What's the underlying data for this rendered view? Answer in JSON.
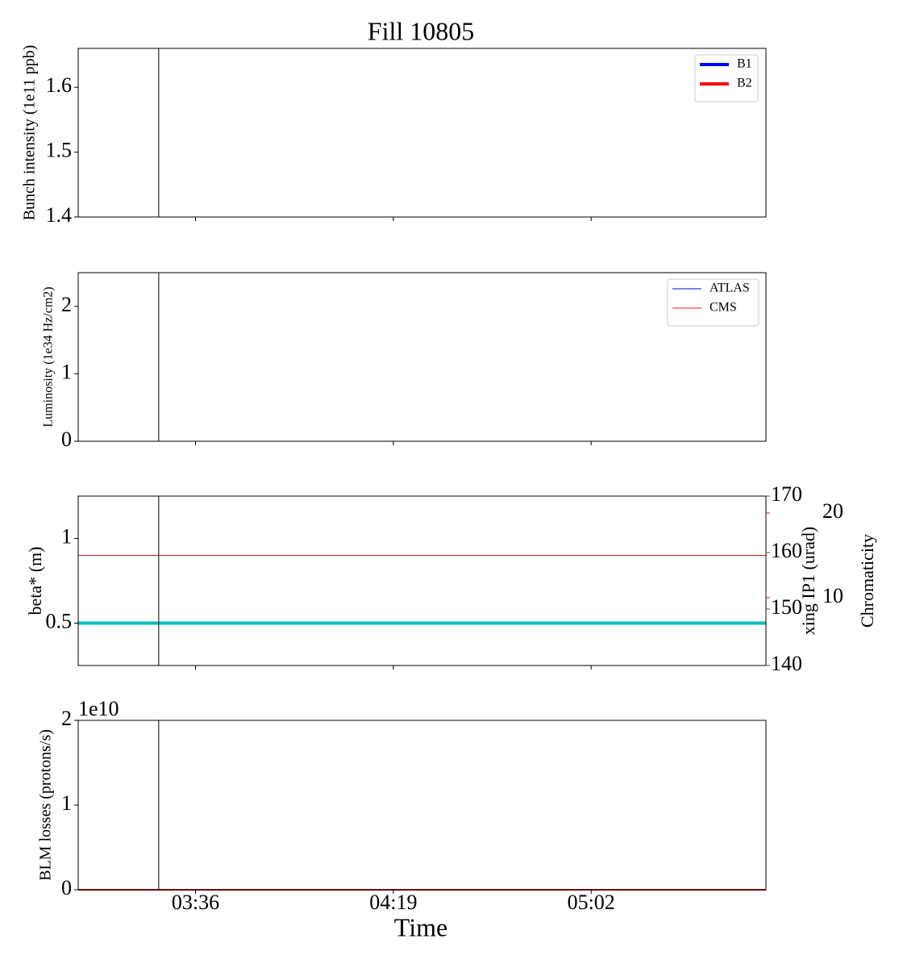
{
  "title": "Fill 10805",
  "chart_data": [
    {
      "type": "line",
      "ylabel": "Bunch intensity (1e11 ppb)",
      "x": [],
      "series": [
        {
          "name": "B1",
          "color": "#0000ff",
          "values": []
        },
        {
          "name": "B2",
          "color": "#ff0000",
          "values": []
        }
      ],
      "xlim": [
        190.5,
        340
      ],
      "xticks": [
        {
          "value": 216,
          "label": "03:36"
        },
        {
          "value": 259,
          "label": "04:19"
        },
        {
          "value": 302,
          "label": "05:02"
        }
      ],
      "ylim": [
        1.4,
        1.66
      ],
      "yticks": [
        1.4,
        1.5,
        1.6
      ],
      "vline": 208,
      "legend": "upper right"
    },
    {
      "type": "line",
      "ylabel": "Luminosity (1e34 Hz/cm2)",
      "x": [
        190.5,
        340
      ],
      "series": [
        {
          "name": "ATLAS",
          "color": "#0000cc",
          "values": [
            0,
            0
          ]
        },
        {
          "name": "CMS",
          "color": "#cc2222",
          "values": [
            0,
            0
          ]
        }
      ],
      "xlim": [
        190.5,
        340
      ],
      "xticks": [
        {
          "value": 216,
          "label": "03:36"
        },
        {
          "value": 259,
          "label": "04:19"
        },
        {
          "value": 302,
          "label": "05:02"
        }
      ],
      "ylim": [
        0,
        2.5
      ],
      "yticks": [
        0,
        1,
        2
      ],
      "vline": 208,
      "legend": "upper right"
    },
    {
      "type": "line",
      "ylabel": "beta* (m)",
      "ylabel_color": "#00bfbf",
      "y2label": "xing IP1 (urad)",
      "y2color": "#008000",
      "y3label": "Chromaticity",
      "y3color": "#b22222",
      "x": [
        190.5,
        340
      ],
      "series": [
        {
          "color": "#00bfbf",
          "values": [
            0.5,
            0.5
          ]
        },
        {
          "color": "#b22222",
          "values": [
            15,
            15
          ],
          "axis": "y3"
        }
      ],
      "xlim": [
        190.5,
        340
      ],
      "xticks": [
        {
          "value": 216,
          "label": "03:36"
        },
        {
          "value": 259,
          "label": "04:19"
        },
        {
          "value": 302,
          "label": "05:02"
        }
      ],
      "ylim": [
        0.25,
        1.25
      ],
      "yticks": [
        0.5,
        1.0
      ],
      "y2lim": [
        140,
        170
      ],
      "y2ticks": [
        140,
        150,
        160,
        170
      ],
      "y3lim": [
        2,
        22
      ],
      "y3ticks": [
        10,
        20
      ],
      "vline": 208
    },
    {
      "type": "line",
      "ylabel": "BLM losses (protons/s)",
      "xlabel": "Time",
      "offset_label": "1e10",
      "x": [
        190.5,
        340
      ],
      "series": [
        {
          "color": "#cc0000",
          "values": [
            0,
            0
          ]
        }
      ],
      "xlim": [
        190.5,
        340
      ],
      "xticks": [
        {
          "value": 216,
          "label": "03:36"
        },
        {
          "value": 259,
          "label": "04:19"
        },
        {
          "value": 302,
          "label": "05:02"
        }
      ],
      "ylim": [
        0,
        2
      ],
      "yticks": [
        0,
        1,
        2
      ],
      "vline": 208
    }
  ]
}
